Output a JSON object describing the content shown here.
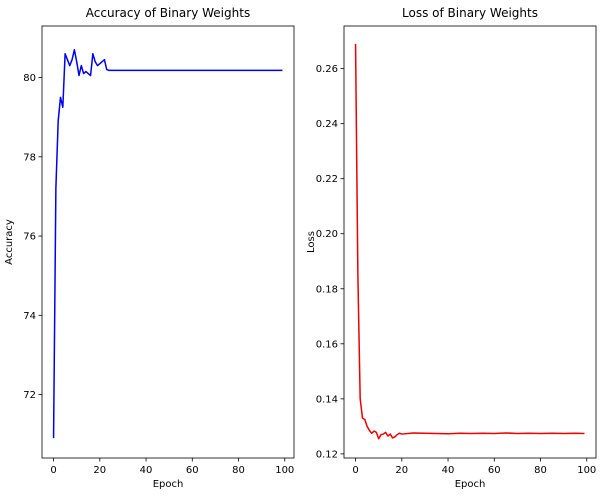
{
  "chart_data": [
    {
      "type": "line",
      "title": "Accuracy of Binary Weights",
      "xlabel": "Epoch",
      "ylabel": "Accuracy",
      "xlim": [
        -5,
        104
      ],
      "ylim": [
        70.4,
        81.3
      ],
      "xticks": [
        0,
        20,
        40,
        60,
        80,
        100
      ],
      "yticks": [
        72,
        74,
        76,
        78,
        80
      ],
      "grid": false,
      "series": [
        {
          "color": "#0000ee",
          "x": [
            0,
            1,
            2,
            3,
            4,
            5,
            6,
            7,
            8,
            9,
            10,
            11,
            12,
            13,
            14,
            15,
            16,
            17,
            18,
            19,
            20,
            21,
            22,
            23,
            24,
            30,
            40,
            50,
            60,
            70,
            80,
            90,
            99
          ],
          "y": [
            70.9,
            77.2,
            78.9,
            79.5,
            79.25,
            80.6,
            80.45,
            80.3,
            80.45,
            80.7,
            80.4,
            80.05,
            80.3,
            80.1,
            80.15,
            80.1,
            80.05,
            80.6,
            80.4,
            80.3,
            80.35,
            80.4,
            80.45,
            80.2,
            80.18,
            80.18,
            80.18,
            80.18,
            80.18,
            80.18,
            80.18,
            80.18,
            80.18
          ]
        }
      ]
    },
    {
      "type": "line",
      "title": "Loss of Binary Weights",
      "xlabel": "Epoch",
      "ylabel": "Loss",
      "xlim": [
        -5,
        104
      ],
      "ylim": [
        0.1185,
        0.2755
      ],
      "xticks": [
        0,
        20,
        40,
        60,
        80,
        100
      ],
      "yticks": [
        0.12,
        0.14,
        0.16,
        0.18,
        0.2,
        0.22,
        0.24,
        0.26
      ],
      "ytick_labels": [
        "0.12",
        "0.14",
        "0.16",
        "0.18",
        "0.20",
        "0.22",
        "0.24",
        "0.26"
      ],
      "grid": false,
      "series": [
        {
          "color": "#ee0000",
          "x": [
            0,
            1,
            2,
            3,
            4,
            5,
            6,
            7,
            8,
            9,
            10,
            11,
            12,
            13,
            14,
            15,
            16,
            17,
            18,
            19,
            20,
            25,
            30,
            35,
            40,
            45,
            50,
            55,
            60,
            65,
            70,
            75,
            80,
            85,
            90,
            95,
            99
          ],
          "y": [
            0.269,
            0.185,
            0.14,
            0.133,
            0.1325,
            0.13,
            0.1285,
            0.1275,
            0.1283,
            0.1278,
            0.1255,
            0.127,
            0.1272,
            0.1278,
            0.1265,
            0.1272,
            0.1258,
            0.1262,
            0.127,
            0.1275,
            0.1272,
            0.1276,
            0.1275,
            0.1274,
            0.1273,
            0.1275,
            0.1274,
            0.1275,
            0.1274,
            0.1276,
            0.1274,
            0.1275,
            0.1274,
            0.1275,
            0.1274,
            0.1275,
            0.1274
          ]
        }
      ]
    }
  ]
}
